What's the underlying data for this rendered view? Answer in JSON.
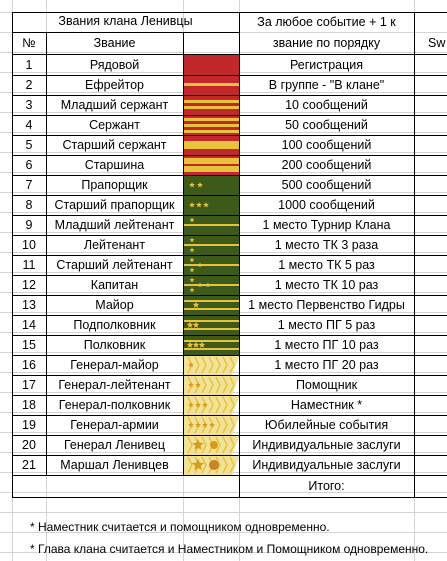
{
  "header": {
    "title": "Звания клана Ленивцы",
    "col_num": "№",
    "col_rank": "Звание",
    "col_event": "За любое событие + 1 к звание по порядку",
    "col_event_line1": "За любое событие + 1 к",
    "col_event_line2": "звание по порядку",
    "col_extra": "Sw"
  },
  "ranks": [
    {
      "num": "1",
      "name": "Рядовой",
      "event": "Регистрация",
      "insignia": "private"
    },
    {
      "num": "2",
      "name": "Ефрейтор",
      "event": "В группе - \"В клане\"",
      "insignia": "stripe1"
    },
    {
      "num": "3",
      "name": "Младший сержант",
      "event": "10 сообщений",
      "insignia": "stripe2"
    },
    {
      "num": "4",
      "name": "Сержант",
      "event": "50 сообщений",
      "insignia": "stripe3"
    },
    {
      "num": "5",
      "name": "Старший сержант",
      "event": "100 сообщений",
      "insignia": "wide"
    },
    {
      "num": "6",
      "name": "Старшина",
      "event": "200 сообщений",
      "insignia": "wide-long"
    },
    {
      "num": "7",
      "name": "Прапорщик",
      "event": "500 сообщений",
      "insignia": "green-2star"
    },
    {
      "num": "8",
      "name": "Старший прапорщик",
      "event": "1000 сообщений",
      "insignia": "green-3star"
    },
    {
      "num": "9",
      "name": "Младший лейтенант",
      "event": "1 место Турнир Клана",
      "insignia": "officer-1star"
    },
    {
      "num": "10",
      "name": "Лейтенант",
      "event": "1 место ТК 3 раза",
      "insignia": "officer-2star"
    },
    {
      "num": "11",
      "name": "Старший лейтенант",
      "event": "1 место ТК 5 раз",
      "insignia": "officer-3star"
    },
    {
      "num": "12",
      "name": "Капитан",
      "event": "1 место ТК 10 раз",
      "insignia": "officer-4star"
    },
    {
      "num": "13",
      "name": "Майор",
      "event": "1 место Первенство Гидры",
      "insignia": "field-1star"
    },
    {
      "num": "14",
      "name": "Подполковник",
      "event": "1 место ПГ 5 раз",
      "insignia": "field-2star"
    },
    {
      "num": "15",
      "name": "Полковник",
      "event": "1 место ПГ 10 раз",
      "insignia": "field-3star"
    },
    {
      "num": "16",
      "name": "Генерал-майор",
      "event": "1 место ПГ 20 раз",
      "insignia": "gen-1"
    },
    {
      "num": "17",
      "name": "Генерал-лейтенант",
      "event": "Помощник",
      "insignia": "gen-2"
    },
    {
      "num": "18",
      "name": "Генерал-полковник",
      "event": "Наместник *",
      "insignia": "gen-3"
    },
    {
      "num": "19",
      "name": "Генерал-армии",
      "event": "Юбилейные события",
      "insignia": "gen-4"
    },
    {
      "num": "20",
      "name": "Генерал Ленивец",
      "event": "Индивидуальные заслуги",
      "insignia": "gen-big"
    },
    {
      "num": "21",
      "name": "Маршал Ленивцев",
      "event": "Индивидуальные заслуги",
      "insignia": "marshal"
    }
  ],
  "total_label": "Итого:",
  "notes": [
    "*  Наместник считается и помощником одновременно.",
    "*  Глава клана считается и Наместником и Помощником одновременно."
  ],
  "colors": {
    "red": "#c0282c",
    "gold": "#e8c23a",
    "green": "#3e5a1a",
    "pale_gold": "#f1e29a"
  }
}
